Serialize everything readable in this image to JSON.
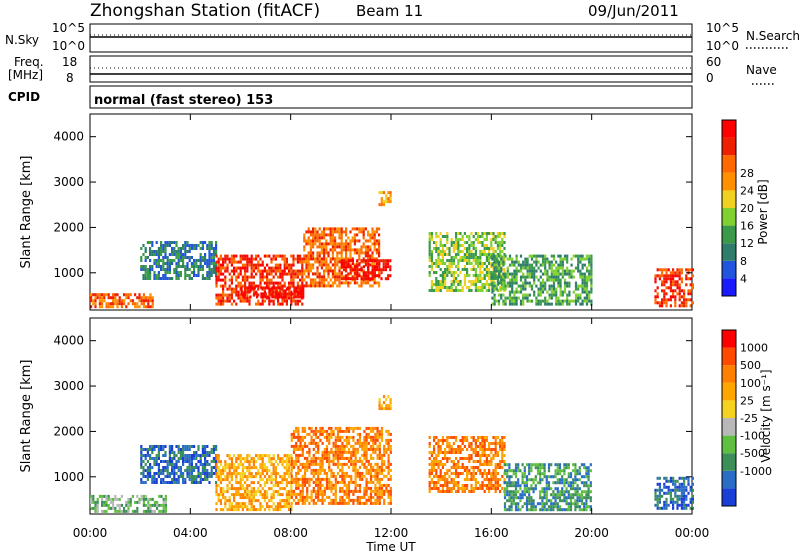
{
  "header": {
    "station": "Zhongshan Station (fitACF)",
    "beam": "Beam 11",
    "date": "09/Jun/2011"
  },
  "strips": {
    "nsky_label": "N.Sky",
    "nsky_ticks": [
      "10^5",
      "10^0"
    ],
    "nsearch_label": "N.Search",
    "nsearch_ticks": [
      "10^5",
      "10^0"
    ],
    "freq_label": "Freq.",
    "freq_unit": "[MHz]",
    "freq_ticks": [
      "18",
      "8"
    ],
    "nave_label": "Nave",
    "nave_ticks": [
      "60",
      "0"
    ],
    "cpid_label": "CPID",
    "cpid_text": "normal (fast stereo) 153"
  },
  "chart_data": [
    {
      "type": "heatmap",
      "name": "power",
      "ylabel": "Slant Range [km]",
      "yticks": [
        "1000",
        "2000",
        "3000",
        "4000"
      ],
      "ylim": [
        180,
        4500
      ],
      "xlim_hours": [
        0,
        24
      ],
      "colorbar": {
        "label": "Power [dB]",
        "ticks": [
          "4",
          "8",
          "12",
          "16",
          "20",
          "24",
          "28"
        ],
        "colors": [
          "#1a1aff",
          "#2255dd",
          "#2e7d6a",
          "#3a9a4a",
          "#7fd030",
          "#f0d020",
          "#ff9000",
          "#ff6a00",
          "#ee2000",
          "#ff0000"
        ]
      },
      "regions": [
        {
          "t0": 0.0,
          "t1": 2.5,
          "r0": 230,
          "r1": 550,
          "level": 7
        },
        {
          "t0": 2.0,
          "t1": 5.0,
          "r0": 900,
          "r1": 1700,
          "level": 2
        },
        {
          "t0": 5.0,
          "t1": 8.5,
          "r0": 300,
          "r1": 1400,
          "level": 8
        },
        {
          "t0": 6.0,
          "t1": 8.5,
          "r0": 500,
          "r1": 700,
          "level": 9
        },
        {
          "t0": 8.5,
          "t1": 11.5,
          "r0": 700,
          "r1": 2000,
          "level": 7
        },
        {
          "t0": 10.0,
          "t1": 12.0,
          "r0": 900,
          "r1": 1300,
          "level": 9
        },
        {
          "t0": 11.5,
          "t1": 12.0,
          "r0": 2500,
          "r1": 2800,
          "level": 6
        },
        {
          "t0": 13.5,
          "t1": 16.5,
          "r0": 600,
          "r1": 1900,
          "level": 4
        },
        {
          "t0": 16.0,
          "t1": 20.0,
          "r0": 300,
          "r1": 1400,
          "level": 3
        },
        {
          "t0": 22.5,
          "t1": 24.0,
          "r0": 300,
          "r1": 1100,
          "level": 8
        }
      ]
    },
    {
      "type": "heatmap",
      "name": "velocity",
      "ylabel": "Slant Range [km]",
      "yticks": [
        "1000",
        "2000",
        "3000",
        "4000"
      ],
      "ylim": [
        180,
        4500
      ],
      "xlim_hours": [
        0,
        24
      ],
      "xticks": [
        "00:00",
        "04:00",
        "08:00",
        "12:00",
        "16:00",
        "20:00",
        "00:00"
      ],
      "xlabel": "Time UT",
      "colorbar": {
        "label": "Velocity [m s⁻¹]",
        "ticks": [
          "1000",
          "500",
          "100",
          "25",
          "-25",
          "-100",
          "-500",
          "-1000"
        ],
        "colors": [
          "#1a3fd6",
          "#2a6dc4",
          "#3d8f5a",
          "#5fbf40",
          "#b8b8b8",
          "#f5d21f",
          "#ffa500",
          "#ff7f00",
          "#ff4a00",
          "#ff0000"
        ]
      },
      "regions": [
        {
          "t0": 0.0,
          "t1": 3.0,
          "r0": 230,
          "r1": 600,
          "level": 3
        },
        {
          "t0": 2.0,
          "t1": 5.0,
          "r0": 900,
          "r1": 1700,
          "level": 1
        },
        {
          "t0": 5.0,
          "t1": 8.0,
          "r0": 300,
          "r1": 1500,
          "level": 6
        },
        {
          "t0": 8.0,
          "t1": 12.0,
          "r0": 400,
          "r1": 2100,
          "level": 7
        },
        {
          "t0": 11.5,
          "t1": 12.0,
          "r0": 2500,
          "r1": 2800,
          "level": 6
        },
        {
          "t0": 13.5,
          "t1": 16.5,
          "r0": 700,
          "r1": 1900,
          "level": 7
        },
        {
          "t0": 16.5,
          "t1": 20.0,
          "r0": 300,
          "r1": 1300,
          "level": 2
        },
        {
          "t0": 22.5,
          "t1": 24.0,
          "r0": 300,
          "r1": 1000,
          "level": 1
        }
      ]
    }
  ]
}
